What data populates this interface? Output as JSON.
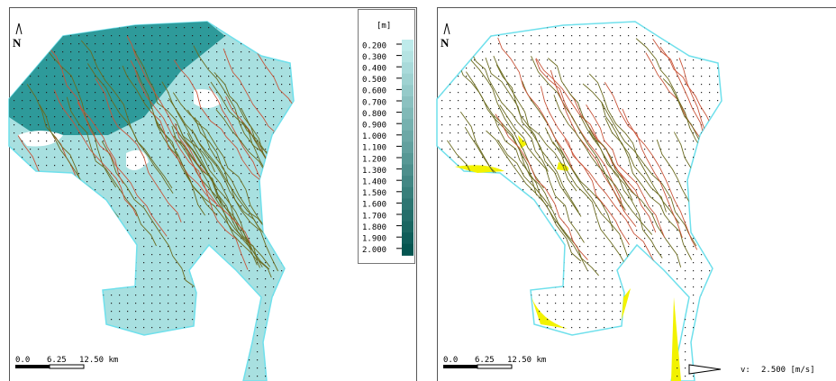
{
  "panels": [
    {
      "north": "N",
      "legend": {
        "title": "[m]",
        "labels": [
          "0.200",
          "0.300",
          "0.400",
          "0.500",
          "0.600",
          "0.700",
          "0.800",
          "0.900",
          "1.000",
          "1.100",
          "1.200",
          "1.300",
          "1.400",
          "1.500",
          "1.600",
          "1.700",
          "1.800",
          "1.900",
          "2.000"
        ]
      },
      "scale": [
        "0.0",
        "6.25",
        "12.50 km"
      ]
    },
    {
      "north": "N",
      "scale": [
        "0.0",
        "6.25",
        "12.50 km"
      ],
      "vector_key": {
        "label": "v:",
        "value": "2.500 [m/s]"
      }
    }
  ]
}
